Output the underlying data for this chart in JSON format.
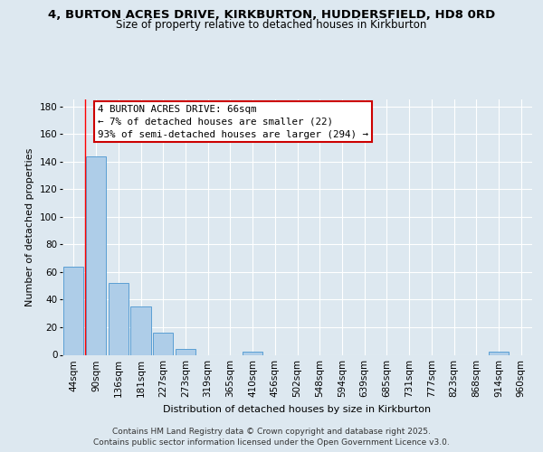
{
  "title_line1": "4, BURTON ACRES DRIVE, KIRKBURTON, HUDDERSFIELD, HD8 0RD",
  "title_line2": "Size of property relative to detached houses in Kirkburton",
  "bar_labels": [
    "44sqm",
    "90sqm",
    "136sqm",
    "181sqm",
    "227sqm",
    "273sqm",
    "319sqm",
    "365sqm",
    "410sqm",
    "456sqm",
    "502sqm",
    "548sqm",
    "594sqm",
    "639sqm",
    "685sqm",
    "731sqm",
    "777sqm",
    "823sqm",
    "868sqm",
    "914sqm",
    "960sqm"
  ],
  "bar_values": [
    64,
    144,
    52,
    35,
    16,
    4,
    0,
    0,
    2,
    0,
    0,
    0,
    0,
    0,
    0,
    0,
    0,
    0,
    0,
    2,
    0
  ],
  "bar_color": "#aecde8",
  "bar_edge_color": "#5a9fd4",
  "ylim": [
    0,
    185
  ],
  "yticks": [
    0,
    20,
    40,
    60,
    80,
    100,
    120,
    140,
    160,
    180
  ],
  "ylabel": "Number of detached properties",
  "xlabel": "Distribution of detached houses by size in Kirkburton",
  "annotation_title": "4 BURTON ACRES DRIVE: 66sqm",
  "annotation_line1": "← 7% of detached houses are smaller (22)",
  "annotation_line2": "93% of semi-detached houses are larger (294) →",
  "annotation_box_color": "#ffffff",
  "annotation_box_edge_color": "#cc0000",
  "bg_color": "#dde8f0",
  "plot_bg_color": "#dde8f0",
  "footer_line1": "Contains HM Land Registry data © Crown copyright and database right 2025.",
  "footer_line2": "Contains public sector information licensed under the Open Government Licence v3.0."
}
